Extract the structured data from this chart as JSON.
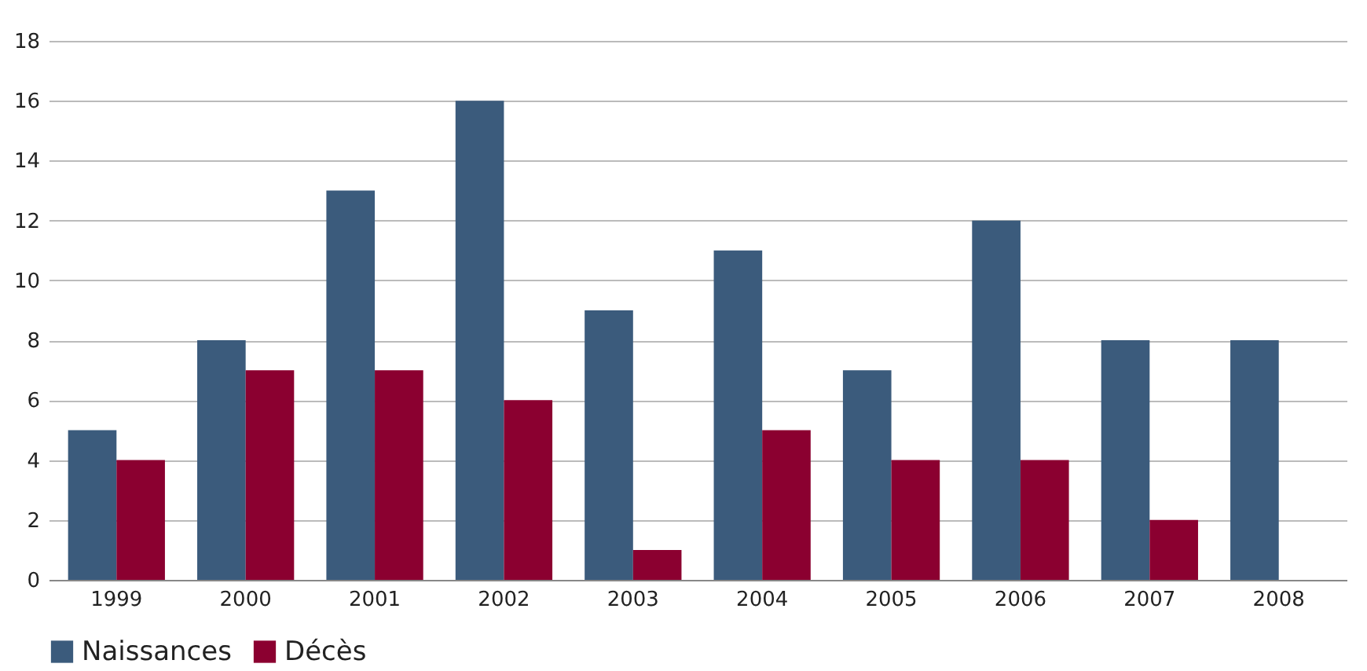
{
  "chart_data": {
    "type": "bar",
    "categories": [
      "1999",
      "2000",
      "2001",
      "2002",
      "2003",
      "2004",
      "2005",
      "2006",
      "2007",
      "2008"
    ],
    "series": [
      {
        "name": "Naissances",
        "color": "#3b5b7c",
        "values": [
          5,
          8,
          13,
          16,
          9,
          11,
          7,
          12,
          8,
          8
        ]
      },
      {
        "name": "Décès",
        "color": "#8b0030",
        "values": [
          4,
          7,
          7,
          6,
          1,
          5,
          4,
          4,
          2,
          0
        ]
      }
    ],
    "ylim": [
      0,
      18
    ],
    "yticks": [
      0,
      2,
      4,
      6,
      8,
      10,
      12,
      14,
      16,
      18
    ],
    "grid": "y",
    "legend": "bottom"
  }
}
